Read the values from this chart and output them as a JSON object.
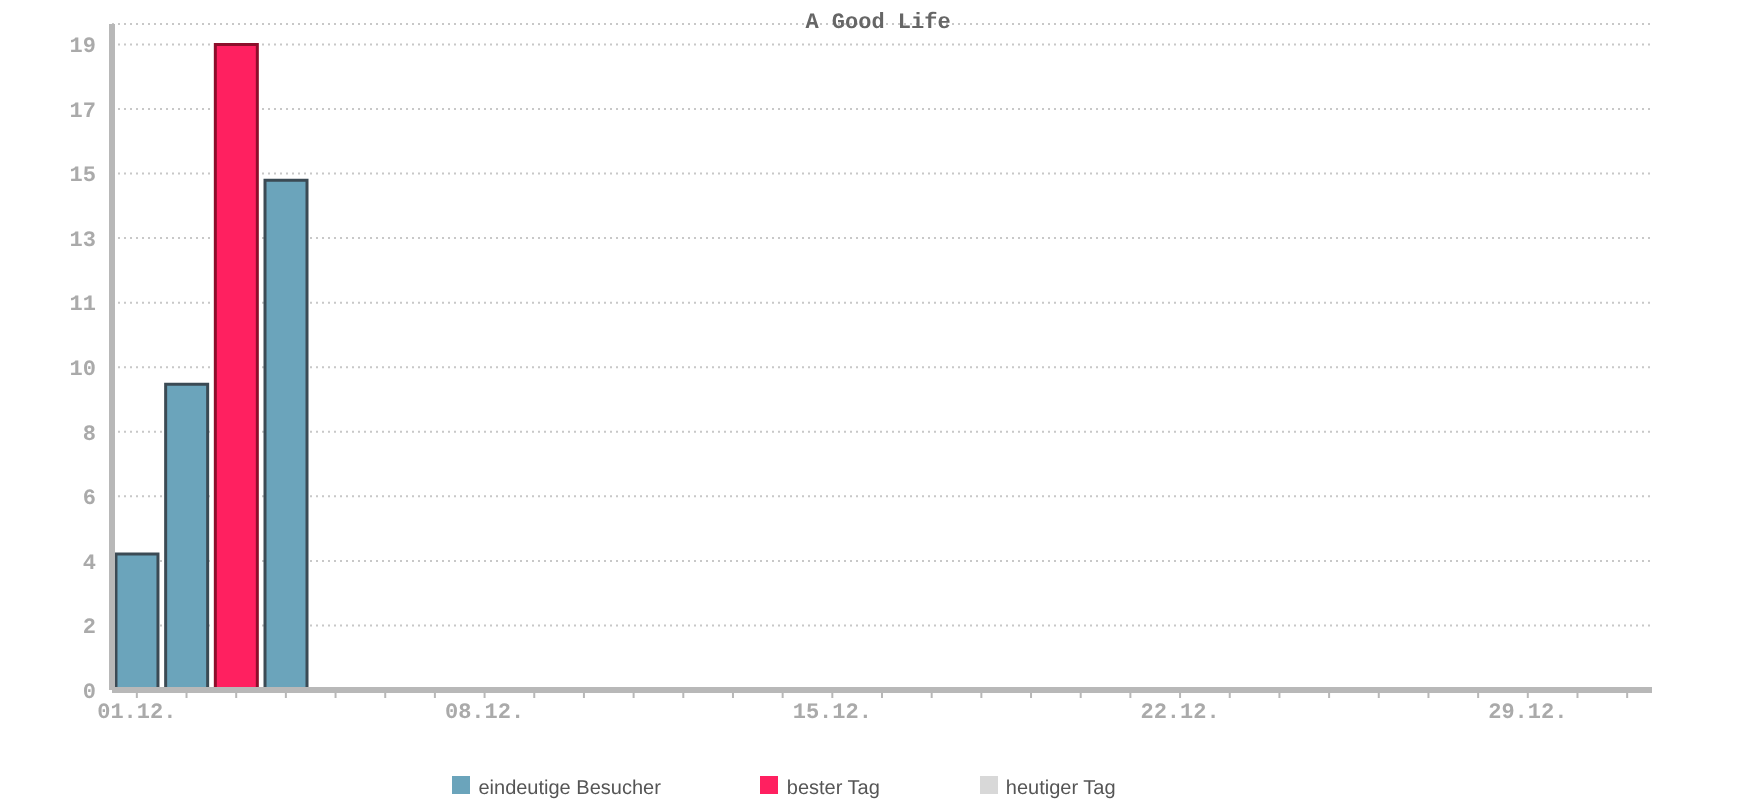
{
  "chart_data": {
    "type": "bar",
    "title": "A Good Life",
    "categories": [
      "01.12.",
      null,
      null,
      null,
      null,
      null,
      null,
      "08.12.",
      null,
      null,
      null,
      null,
      null,
      null,
      "15.12.",
      null,
      null,
      null,
      null,
      null,
      null,
      "22.12.",
      null,
      null,
      null,
      null,
      null,
      null,
      "29.12.",
      null,
      null
    ],
    "series": [
      {
        "name": "eindeutige Besucher",
        "color": "#6ba4bb",
        "values": [
          4,
          9,
          null,
          15,
          null,
          null,
          null,
          null,
          null,
          null,
          null,
          null,
          null,
          null,
          null,
          null,
          null,
          null,
          null,
          null,
          null,
          null,
          null,
          null,
          null,
          null,
          null,
          null,
          null,
          null,
          null
        ]
      },
      {
        "name": "bester Tag",
        "color": "#ff2060",
        "values": [
          null,
          null,
          19,
          null,
          null,
          null,
          null,
          null,
          null,
          null,
          null,
          null,
          null,
          null,
          null,
          null,
          null,
          null,
          null,
          null,
          null,
          null,
          null,
          null,
          null,
          null,
          null,
          null,
          null,
          null,
          null
        ]
      },
      {
        "name": "heutiger Tag",
        "color": "#d8d8d8",
        "values": [
          null,
          null,
          null,
          null,
          null,
          null,
          null,
          null,
          null,
          null,
          null,
          null,
          null,
          null,
          null,
          null,
          null,
          null,
          null,
          null,
          null,
          null,
          null,
          null,
          null,
          null,
          null,
          null,
          null,
          null,
          null
        ]
      }
    ],
    "stacked": true,
    "ylim": [
      0,
      19.6
    ],
    "yticks": [
      0,
      {
        "value": 1.9,
        "label": "2"
      },
      {
        "value": 3.8,
        "label": "4"
      },
      {
        "value": 5.7,
        "label": "6"
      },
      {
        "value": 7.6,
        "label": "8"
      },
      {
        "value": 9.5,
        "label": "10"
      },
      {
        "value": 11.4,
        "label": "11"
      },
      {
        "value": 13.3,
        "label": "13"
      },
      {
        "value": 15.2,
        "label": "15"
      },
      {
        "value": 17.1,
        "label": "17"
      },
      19
    ],
    "grid": "y",
    "legend": "bottom"
  }
}
